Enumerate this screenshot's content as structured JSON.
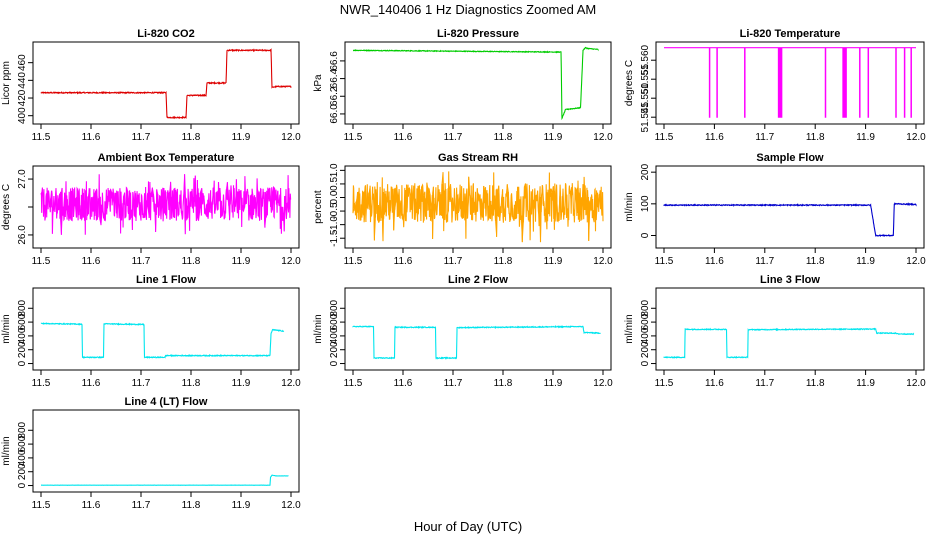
{
  "figure": {
    "title": "NWR_140406  1 Hz Diagnostics Zoomed AM",
    "xlabel": "Hour of Day (UTC)"
  },
  "chart_data": [
    {
      "type": "line",
      "title": "Li-820 CO2",
      "ylabel": "Licor ppm",
      "color": "#dd0000",
      "xlim": [
        11.5,
        12.0
      ],
      "ylim": [
        394,
        480
      ],
      "xticks": [
        11.5,
        11.6,
        11.7,
        11.8,
        11.9,
        12.0
      ],
      "xtick_labels": [
        "11.5",
        "11.6",
        "11.7",
        "11.8",
        "11.9",
        "12.0"
      ],
      "yticks": [
        400,
        420,
        440,
        460
      ],
      "ytick_labels": [
        "400",
        "420",
        "440",
        "460"
      ],
      "noise": 0.6,
      "x": [
        11.5,
        11.75,
        11.752,
        11.79,
        11.792,
        11.83,
        11.832,
        11.87,
        11.872,
        11.96,
        11.962,
        11.97,
        12.0
      ],
      "y": [
        426,
        426,
        398,
        398,
        423,
        423,
        437,
        437,
        474,
        474,
        432,
        433,
        433
      ]
    },
    {
      "type": "line",
      "title": "Li-820 Pressure",
      "ylabel": "kPa",
      "color": "#00cc00",
      "xlim": [
        11.5,
        12.0
      ],
      "ylim": [
        65.92,
        66.78
      ],
      "xticks": [
        11.5,
        11.6,
        11.7,
        11.8,
        11.9,
        12.0
      ],
      "xtick_labels": [
        "11.5",
        "11.6",
        "11.7",
        "11.8",
        "11.9",
        "12.0"
      ],
      "yticks": [
        66.0,
        66.2,
        66.4,
        66.6
      ],
      "ytick_labels": [
        "66.0",
        "66.2",
        "66.4",
        "66.6"
      ],
      "noise": 0.004,
      "x": [
        11.5,
        11.7,
        11.916,
        11.918,
        11.925,
        11.955,
        11.96,
        11.965,
        11.97,
        11.99
      ],
      "y": [
        66.72,
        66.71,
        66.7,
        65.95,
        66.05,
        66.07,
        66.72,
        66.75,
        66.74,
        66.73
      ]
    },
    {
      "type": "line",
      "title": "Li-820 Temperature",
      "ylabel": "degrees C",
      "color": "#ff00ff",
      "xlim": [
        11.5,
        12.0
      ],
      "ylim": [
        51.544,
        51.564
      ],
      "xticks": [
        11.5,
        11.6,
        11.7,
        11.8,
        11.9,
        12.0
      ],
      "xtick_labels": [
        "11.5",
        "11.6",
        "11.7",
        "11.8",
        "11.9",
        "12.0"
      ],
      "yticks": [
        51.545,
        51.55,
        51.555,
        51.56
      ],
      "ytick_labels": [
        "51.545",
        "51.550",
        "51.555",
        "51.560"
      ],
      "noise": 0,
      "baseline": 51.5633,
      "dip_value": 51.545,
      "dips_x": [
        11.59,
        11.605,
        11.66,
        11.727,
        11.729,
        11.731,
        11.733,
        11.82,
        11.855,
        11.858,
        11.861,
        11.888,
        11.905,
        11.96,
        11.977,
        11.99
      ]
    },
    {
      "type": "line",
      "title": "Ambient Box Temperature",
      "ylabel": "degrees C",
      "color": "#ff00ff",
      "xlim": [
        11.5,
        12.0
      ],
      "ylim": [
        25.82,
        27.18
      ],
      "xticks": [
        11.5,
        11.6,
        11.7,
        11.8,
        11.9,
        12.0
      ],
      "xtick_labels": [
        "11.5",
        "11.6",
        "11.7",
        "11.8",
        "11.9",
        "12.0"
      ],
      "yticks": [
        26.0,
        26.5,
        27.0
      ],
      "ytick_labels": [
        "26.0",
        "",
        "27.0"
      ],
      "noise_band": [
        26.0,
        27.1
      ],
      "center": 26.55
    },
    {
      "type": "line",
      "title": "Gas Stream RH",
      "ylabel": "percent",
      "color": "#ffa500",
      "xlim": [
        11.5,
        12.0
      ],
      "ylim": [
        -1.75,
        1.05
      ],
      "xticks": [
        11.5,
        11.6,
        11.7,
        11.8,
        11.9,
        12.0
      ],
      "xtick_labels": [
        "11.5",
        "11.6",
        "11.7",
        "11.8",
        "11.9",
        "12.0"
      ],
      "yticks": [
        -1.5,
        -1.0,
        -0.5,
        0.0,
        0.5,
        1.0
      ],
      "ytick_labels": [
        "-1.5",
        "-1.0",
        "-0.5",
        "0.0",
        "0.5",
        "1.0"
      ],
      "noise_band": [
        -1.65,
        1.0
      ],
      "center": -0.2
    },
    {
      "type": "line",
      "title": "Sample Flow",
      "ylabel": "ml/min",
      "color": "#0000cc",
      "xlim": [
        11.5,
        12.0
      ],
      "ylim": [
        -30,
        210
      ],
      "xticks": [
        11.5,
        11.6,
        11.7,
        11.8,
        11.9,
        12.0
      ],
      "xtick_labels": [
        "11.5",
        "11.6",
        "11.7",
        "11.8",
        "11.9",
        "12.0"
      ],
      "yticks": [
        0,
        100,
        200
      ],
      "ytick_labels": [
        "0",
        "100",
        "200"
      ],
      "noise": 1.5,
      "x": [
        11.5,
        11.91,
        11.92,
        11.955,
        11.957,
        11.962,
        12.0
      ],
      "y": [
        96,
        96,
        0,
        0,
        100,
        100,
        98
      ]
    },
    {
      "type": "line",
      "title": "Line 1 Flow",
      "ylabel": "ml/min",
      "color": "#00e5ee",
      "xlim": [
        11.5,
        12.0
      ],
      "ylim": [
        -50,
        1050
      ],
      "xticks": [
        11.5,
        11.6,
        11.7,
        11.8,
        11.9,
        12.0
      ],
      "xtick_labels": [
        "11.5",
        "11.6",
        "11.7",
        "11.8",
        "11.9",
        "12.0"
      ],
      "yticks": [
        0,
        200,
        400,
        600,
        800
      ],
      "ytick_labels": [
        "0",
        "200",
        "400",
        "600",
        "800"
      ],
      "noise": 6,
      "x": [
        11.5,
        11.582,
        11.583,
        11.625,
        11.626,
        11.706,
        11.707,
        11.748,
        11.749,
        11.958,
        11.96,
        11.963,
        11.985
      ],
      "y": [
        580,
        570,
        90,
        90,
        575,
        565,
        90,
        90,
        115,
        115,
        430,
        490,
        470
      ]
    },
    {
      "type": "line",
      "title": "Line 2 Flow",
      "ylabel": "ml/min",
      "color": "#00e5ee",
      "xlim": [
        11.5,
        12.0
      ],
      "ylim": [
        -50,
        1050
      ],
      "xticks": [
        11.5,
        11.6,
        11.7,
        11.8,
        11.9,
        12.0
      ],
      "xtick_labels": [
        "11.5",
        "11.6",
        "11.7",
        "11.8",
        "11.9",
        "12.0"
      ],
      "yticks": [
        0,
        200,
        400,
        600,
        800
      ],
      "ytick_labels": [
        "0",
        "200",
        "400",
        "600",
        "800"
      ],
      "noise": 6,
      "x": [
        11.5,
        11.541,
        11.542,
        11.583,
        11.584,
        11.665,
        11.666,
        11.707,
        11.708,
        11.96,
        11.962,
        11.995
      ],
      "y": [
        535,
        535,
        80,
        80,
        525,
        525,
        80,
        80,
        520,
        535,
        450,
        440
      ]
    },
    {
      "type": "line",
      "title": "Line 3 Flow",
      "ylabel": "ml/min",
      "color": "#00e5ee",
      "xlim": [
        11.5,
        12.0
      ],
      "ylim": [
        -50,
        1050
      ],
      "xticks": [
        11.5,
        11.6,
        11.7,
        11.8,
        11.9,
        12.0
      ],
      "xtick_labels": [
        "11.5",
        "11.6",
        "11.7",
        "11.8",
        "11.9",
        "12.0"
      ],
      "yticks": [
        0,
        200,
        400,
        600,
        800
      ],
      "ytick_labels": [
        "0",
        "200",
        "400",
        "600",
        "800"
      ],
      "noise": 6,
      "x": [
        11.5,
        11.541,
        11.542,
        11.624,
        11.625,
        11.666,
        11.667,
        11.92,
        11.922,
        11.96,
        11.962,
        11.995
      ],
      "y": [
        90,
        90,
        495,
        495,
        90,
        90,
        490,
        500,
        440,
        440,
        430,
        425
      ]
    },
    {
      "type": "line",
      "title": "Line 4 (LT) Flow",
      "ylabel": "ml/min",
      "color": "#00e5ee",
      "xlim": [
        11.5,
        12.0
      ],
      "ylim": [
        -50,
        1050
      ],
      "xticks": [
        11.5,
        11.6,
        11.7,
        11.8,
        11.9,
        12.0
      ],
      "xtick_labels": [
        "11.5",
        "11.6",
        "11.7",
        "11.8",
        "11.9",
        "12.0"
      ],
      "yticks": [
        0,
        200,
        400,
        600,
        800
      ],
      "ytick_labels": [
        "0",
        "200",
        "400",
        "600",
        "800"
      ],
      "noise": 1,
      "x": [
        11.5,
        11.958,
        11.959,
        11.962,
        11.97,
        11.995
      ],
      "y": [
        5,
        5,
        120,
        150,
        140,
        140
      ]
    }
  ]
}
